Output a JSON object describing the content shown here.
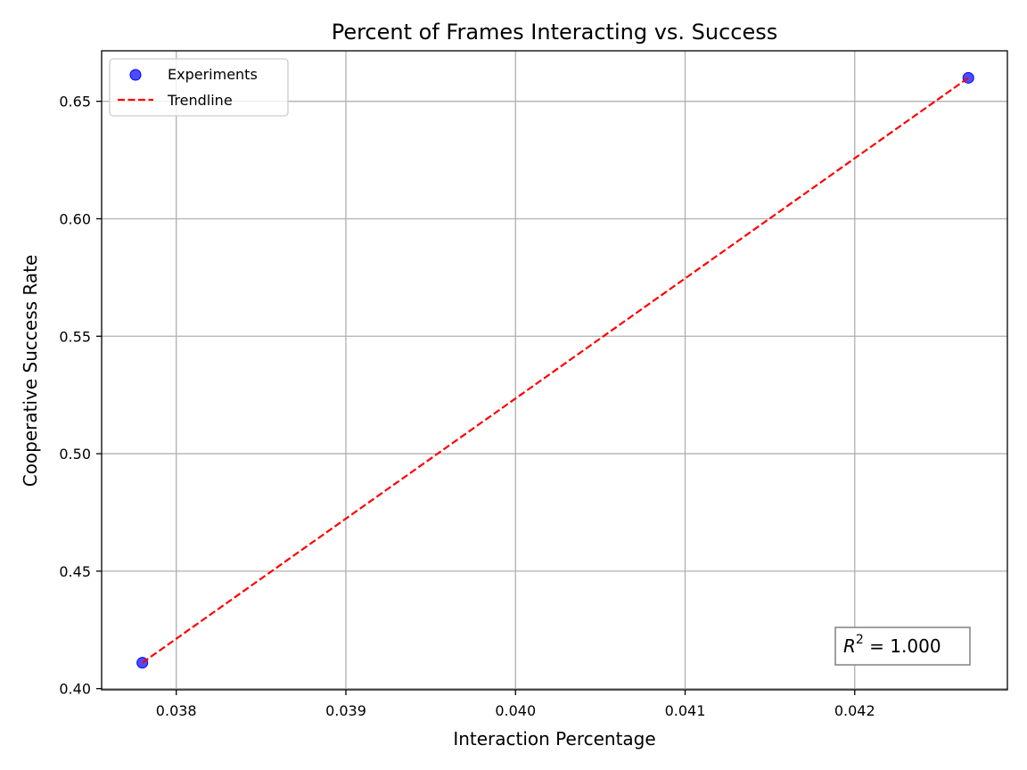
{
  "chart_data": {
    "type": "scatter",
    "title": "Percent of Frames Interacting vs. Success",
    "xlabel": "Interaction Percentage",
    "ylabel": "Cooperative Success Rate",
    "xlim": [
      0.03756,
      0.0429
    ],
    "ylim": [
      0.3995,
      0.6715
    ],
    "x_ticks": [
      0.038,
      0.039,
      0.04,
      0.041,
      0.042
    ],
    "x_tick_labels": [
      "0.038",
      "0.039",
      "0.040",
      "0.041",
      "0.042"
    ],
    "y_ticks": [
      0.4,
      0.45,
      0.5,
      0.55,
      0.6,
      0.65
    ],
    "y_tick_labels": [
      "0.40",
      "0.45",
      "0.50",
      "0.55",
      "0.60",
      "0.65"
    ],
    "grid": true,
    "legend_position": "upper-left",
    "series": [
      {
        "name": "Experiments",
        "kind": "scatter",
        "color": "#0000ff",
        "points": [
          {
            "x": 0.0378,
            "y": 0.411
          },
          {
            "x": 0.04267,
            "y": 0.66
          }
        ]
      },
      {
        "name": "Trendline",
        "kind": "dashed-line",
        "color": "#ff0000",
        "points": [
          {
            "x": 0.0378,
            "y": 0.411
          },
          {
            "x": 0.04267,
            "y": 0.66
          }
        ]
      }
    ],
    "annotation": {
      "prefix": "R",
      "superscript": "2",
      "suffix": " = 1.000",
      "position": "lower-right"
    }
  }
}
